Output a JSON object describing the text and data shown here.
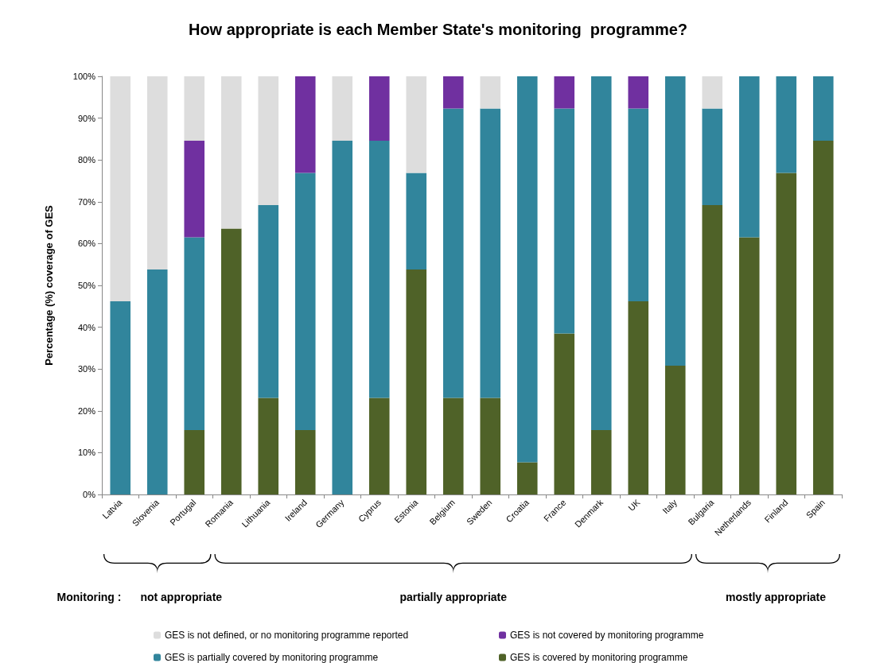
{
  "chart_data": {
    "type": "bar",
    "stacked": true,
    "title": "How appropriate is each Member State's monitoring  programme?",
    "ylabel": "Percentage (%) coverage of GES",
    "categories": [
      "Latvia",
      "Slovenia",
      "Portugal",
      "Romania",
      "Lithuania",
      "Ireland",
      "Germany",
      "Cyprus",
      "Estonia",
      "Belgium",
      "Sweden",
      "Croatia",
      "France",
      "Denmark",
      "UK",
      "Italy",
      "Bulgaria",
      "Netherlands",
      "Finland",
      "Spain"
    ],
    "series": [
      {
        "name": "GES is covered by monitoring programme",
        "color": "#4f6228",
        "values": [
          0,
          0,
          15.4,
          63.6,
          23.1,
          15.4,
          0,
          23.1,
          53.8,
          23.1,
          23.1,
          7.7,
          38.5,
          15.4,
          46.2,
          30.8,
          69.2,
          61.5,
          76.9,
          84.6
        ]
      },
      {
        "name": "GES is partially covered by monitoring programme",
        "color": "#31859c",
        "values": [
          46.2,
          53.8,
          46.1,
          0,
          46.1,
          61.5,
          84.6,
          61.5,
          23.1,
          69.2,
          69.2,
          92.3,
          53.8,
          84.6,
          46.1,
          69.2,
          23.1,
          38.5,
          23.1,
          15.4
        ]
      },
      {
        "name": "GES is not covered by monitoring programme",
        "color": "#7030a0",
        "values": [
          0,
          0,
          23.1,
          0,
          0,
          23.1,
          0,
          15.4,
          0,
          7.7,
          0,
          0,
          7.7,
          0,
          7.7,
          0,
          0,
          0,
          0,
          0
        ]
      },
      {
        "name": "GES is not defined, or no monitoring programme reported",
        "color": "#dddddd",
        "values": [
          53.8,
          46.2,
          15.4,
          36.4,
          30.8,
          0,
          15.4,
          0,
          23.1,
          0,
          7.7,
          0,
          0,
          0,
          0,
          0,
          7.7,
          0,
          0,
          0
        ]
      }
    ],
    "ylim": [
      0,
      100
    ],
    "yticks": [
      {
        "value": 0,
        "label": "0%"
      },
      {
        "value": 10,
        "label": "10%"
      },
      {
        "value": 20,
        "label": "20%"
      },
      {
        "value": 30,
        "label": "30%"
      },
      {
        "value": 40,
        "label": "40%"
      },
      {
        "value": 50,
        "label": "50%"
      },
      {
        "value": 60,
        "label": "60%"
      },
      {
        "value": 70,
        "label": "70%"
      },
      {
        "value": 80,
        "label": "80%"
      },
      {
        "value": 90,
        "label": "90%"
      },
      {
        "value": 100,
        "label": "100%"
      }
    ],
    "grid": false,
    "legend": "bottom",
    "annotations": [
      "Monitoring :",
      "not appropriate",
      "partially appropriate",
      "mostly appropriate"
    ]
  }
}
